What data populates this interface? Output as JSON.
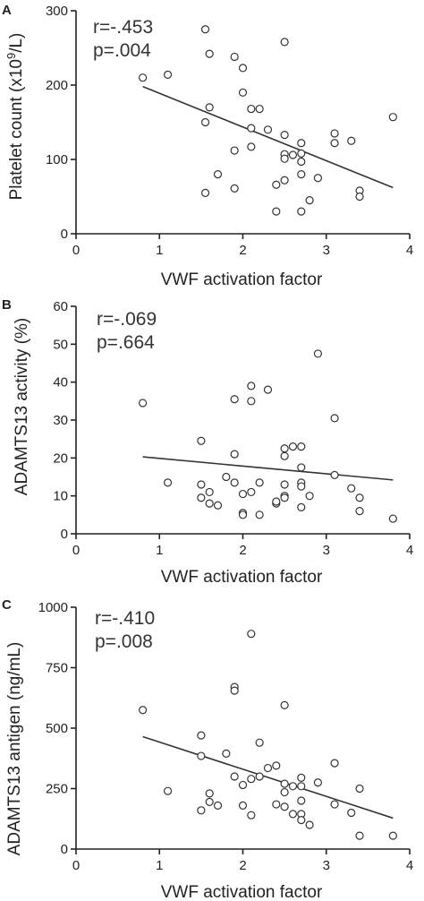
{
  "chart_data": [
    {
      "type": "scatter",
      "panel": "A",
      "xlabel": "VWF activation factor",
      "ylabel": "Platelet count (x10",
      "ylabel_sup": "9",
      "ylabel_tail": "/L)",
      "xlim": [
        0,
        4
      ],
      "ylim": [
        0,
        300
      ],
      "xticks": [
        0,
        1,
        2,
        3,
        4
      ],
      "yticks": [
        0,
        100,
        200,
        300
      ],
      "stat_r": "r=-.453",
      "stat_p": "p=.004",
      "fit": {
        "x": [
          0.8,
          3.8
        ],
        "y": [
          198,
          62
        ]
      },
      "points": [
        [
          0.8,
          210
        ],
        [
          1.1,
          214
        ],
        [
          1.55,
          275
        ],
        [
          1.6,
          242
        ],
        [
          1.9,
          238
        ],
        [
          2.0,
          223
        ],
        [
          2.0,
          190
        ],
        [
          1.55,
          150
        ],
        [
          1.6,
          170
        ],
        [
          2.1,
          168
        ],
        [
          2.2,
          168
        ],
        [
          2.1,
          142
        ],
        [
          2.3,
          140
        ],
        [
          2.5,
          258
        ],
        [
          2.5,
          133
        ],
        [
          2.7,
          122
        ],
        [
          2.6,
          106
        ],
        [
          2.5,
          107
        ],
        [
          2.5,
          101
        ],
        [
          2.7,
          108
        ],
        [
          2.7,
          97
        ],
        [
          3.1,
          135
        ],
        [
          3.1,
          122
        ],
        [
          3.3,
          125
        ],
        [
          2.1,
          117
        ],
        [
          1.9,
          112
        ],
        [
          1.7,
          80
        ],
        [
          1.9,
          61
        ],
        [
          1.55,
          55
        ],
        [
          2.4,
          66
        ],
        [
          2.5,
          72
        ],
        [
          2.9,
          75
        ],
        [
          2.7,
          80
        ],
        [
          2.8,
          45
        ],
        [
          2.7,
          30
        ],
        [
          2.4,
          30
        ],
        [
          3.4,
          58
        ],
        [
          3.4,
          50
        ],
        [
          3.8,
          157
        ]
      ]
    },
    {
      "type": "scatter",
      "panel": "B",
      "xlabel": "VWF activation factor",
      "ylabel": "ADAMTS13 activity (%)",
      "xlim": [
        0,
        4
      ],
      "ylim": [
        0,
        60
      ],
      "xticks": [
        0,
        1,
        2,
        3,
        4
      ],
      "yticks": [
        0,
        10,
        20,
        30,
        40,
        50,
        60
      ],
      "stat_r": "r=-.069",
      "stat_p": "p=.664",
      "fit": {
        "x": [
          0.8,
          3.8
        ],
        "y": [
          20.3,
          14.2
        ]
      },
      "points": [
        [
          0.8,
          34.5
        ],
        [
          1.1,
          13.5
        ],
        [
          1.5,
          24.5
        ],
        [
          1.5,
          13
        ],
        [
          1.5,
          9.5
        ],
        [
          1.6,
          11
        ],
        [
          1.6,
          8
        ],
        [
          1.7,
          7.5
        ],
        [
          1.8,
          15
        ],
        [
          1.9,
          35.5
        ],
        [
          1.9,
          21
        ],
        [
          1.9,
          13.5
        ],
        [
          2.0,
          10.5
        ],
        [
          2.0,
          5.5
        ],
        [
          2.0,
          5
        ],
        [
          2.1,
          39
        ],
        [
          2.1,
          35
        ],
        [
          2.1,
          11
        ],
        [
          2.2,
          13.5
        ],
        [
          2.2,
          5
        ],
        [
          2.3,
          38
        ],
        [
          2.4,
          8
        ],
        [
          2.4,
          8.5
        ],
        [
          2.5,
          22.5
        ],
        [
          2.5,
          20.5
        ],
        [
          2.5,
          13
        ],
        [
          2.5,
          10
        ],
        [
          2.5,
          9.5
        ],
        [
          2.6,
          23
        ],
        [
          2.7,
          23
        ],
        [
          2.7,
          17.5
        ],
        [
          2.7,
          13.5
        ],
        [
          2.7,
          12.5
        ],
        [
          2.7,
          7
        ],
        [
          2.8,
          10
        ],
        [
          2.9,
          47.5
        ],
        [
          3.1,
          30.5
        ],
        [
          3.1,
          15.5
        ],
        [
          3.3,
          12
        ],
        [
          3.4,
          9.5
        ],
        [
          3.4,
          6
        ],
        [
          3.8,
          4
        ]
      ]
    },
    {
      "type": "scatter",
      "panel": "C",
      "xlabel": "VWF activation factor",
      "ylabel": "ADAMTS13 antigen (ng/mL)",
      "xlim": [
        0,
        4
      ],
      "ylim": [
        0,
        1000
      ],
      "xticks": [
        0,
        1,
        2,
        3,
        4
      ],
      "yticks": [
        0,
        250,
        500,
        750,
        1000
      ],
      "stat_r": "r=-.410",
      "stat_p": "p=.008",
      "fit": {
        "x": [
          0.8,
          3.8
        ],
        "y": [
          465,
          128
        ]
      },
      "points": [
        [
          0.8,
          575
        ],
        [
          1.1,
          240
        ],
        [
          1.5,
          470
        ],
        [
          1.5,
          385
        ],
        [
          1.5,
          160
        ],
        [
          1.6,
          230
        ],
        [
          1.6,
          195
        ],
        [
          1.7,
          180
        ],
        [
          1.8,
          395
        ],
        [
          1.9,
          670
        ],
        [
          1.9,
          655
        ],
        [
          1.9,
          300
        ],
        [
          2.0,
          265
        ],
        [
          2.0,
          180
        ],
        [
          2.1,
          890
        ],
        [
          2.1,
          290
        ],
        [
          2.1,
          140
        ],
        [
          2.2,
          440
        ],
        [
          2.2,
          300
        ],
        [
          2.3,
          335
        ],
        [
          2.4,
          345
        ],
        [
          2.4,
          185
        ],
        [
          2.5,
          595
        ],
        [
          2.5,
          270
        ],
        [
          2.5,
          235
        ],
        [
          2.5,
          175
        ],
        [
          2.6,
          260
        ],
        [
          2.6,
          145
        ],
        [
          2.7,
          295
        ],
        [
          2.7,
          260
        ],
        [
          2.7,
          200
        ],
        [
          2.7,
          145
        ],
        [
          2.7,
          120
        ],
        [
          2.8,
          100
        ],
        [
          2.9,
          275
        ],
        [
          3.1,
          355
        ],
        [
          3.1,
          185
        ],
        [
          3.3,
          150
        ],
        [
          3.4,
          250
        ],
        [
          3.4,
          55
        ],
        [
          3.8,
          55
        ]
      ]
    }
  ]
}
